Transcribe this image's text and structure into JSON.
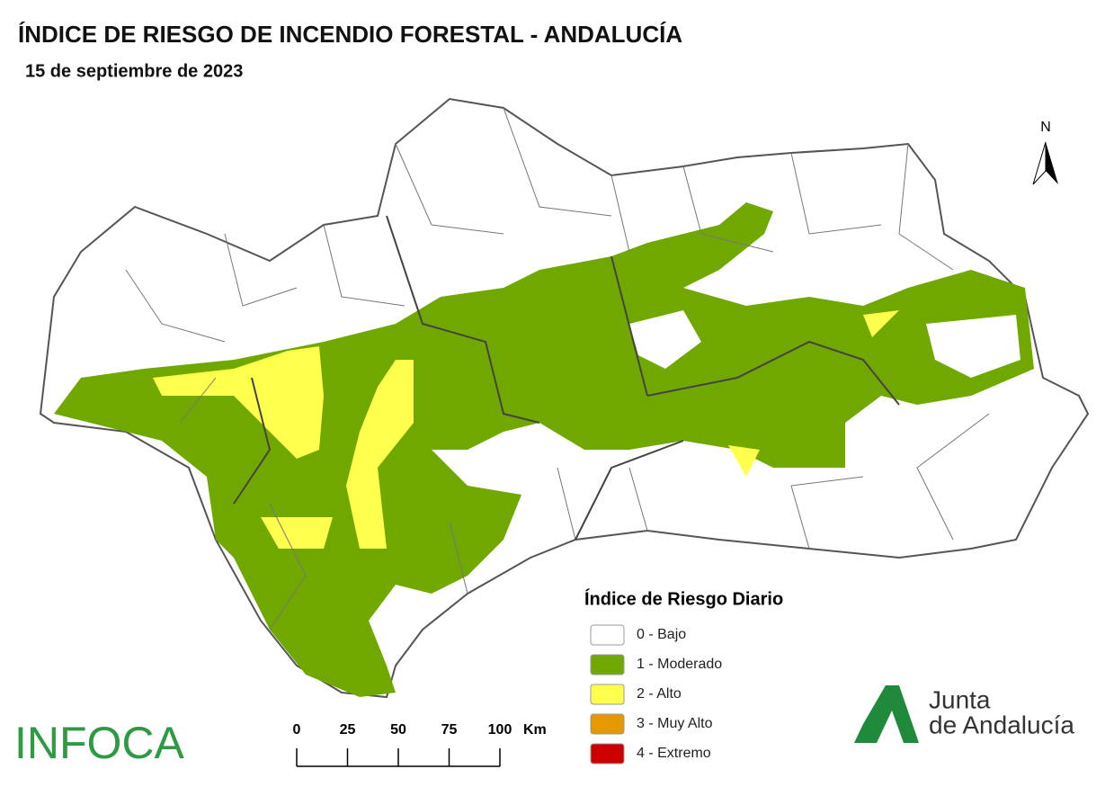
{
  "header": {
    "title": "ÍNDICE DE RIESGO DE INCENDIO FORESTAL - ANDALUCÍA",
    "date": "15 de septiembre de 2023"
  },
  "north_arrow": "N",
  "legend": {
    "title": "Índice de Riesgo Diario",
    "items": [
      {
        "label": "0 - Bajo",
        "color": "#ffffff"
      },
      {
        "label": "1 - Moderado",
        "color": "#70a800"
      },
      {
        "label": "2 - Alto",
        "color": "#ffff4d"
      },
      {
        "label": "3 - Muy Alto",
        "color": "#e69800"
      },
      {
        "label": "4 - Extremo",
        "color": "#cc0000"
      }
    ]
  },
  "scale_bar": {
    "ticks": [
      0,
      25,
      50,
      75,
      100
    ],
    "unit": "Km"
  },
  "logos": {
    "infoca": "INFOCA",
    "junta_line1": "Junta",
    "junta_line2": "de Andalucía"
  }
}
